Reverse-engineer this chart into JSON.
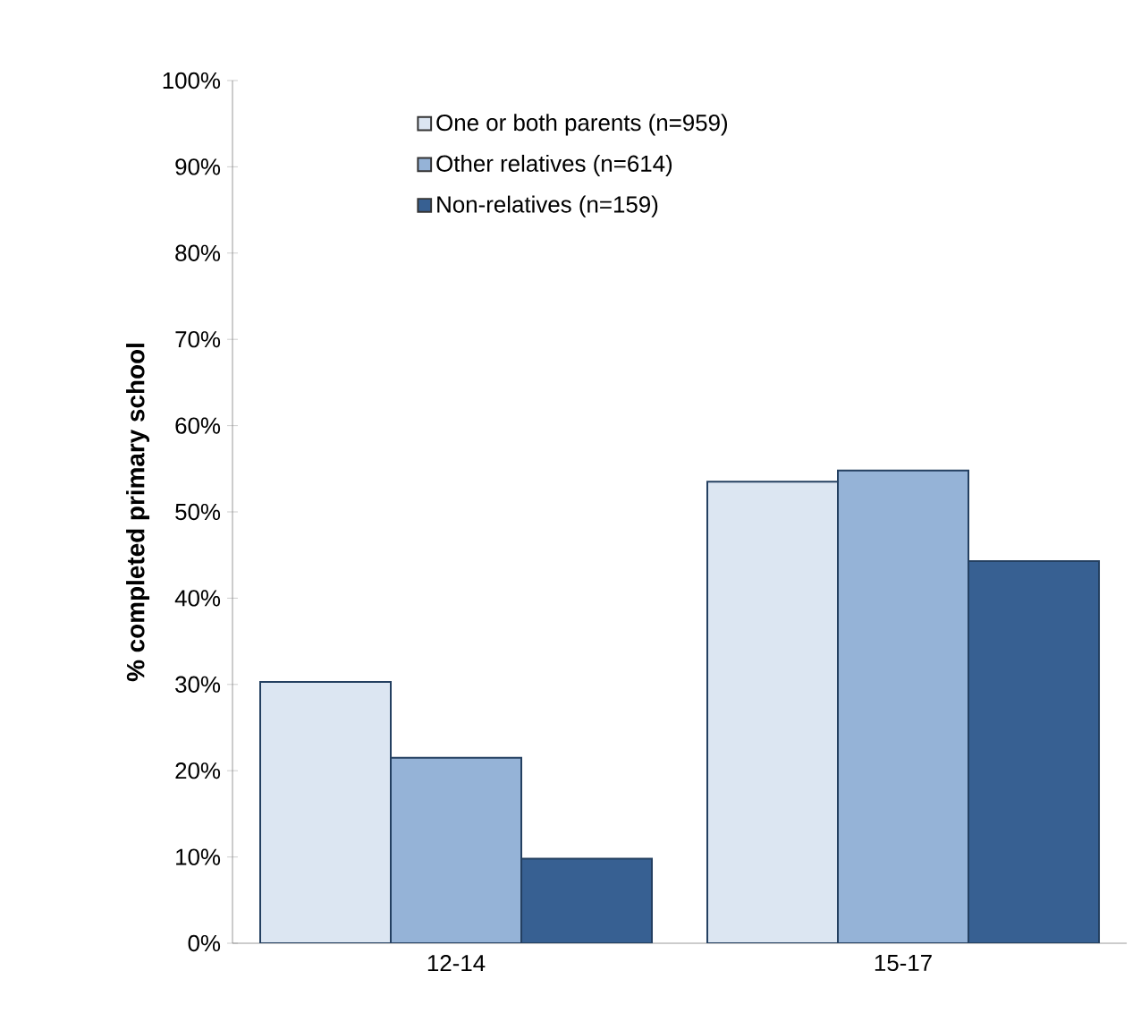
{
  "chart_data": {
    "type": "bar",
    "ylabel": "% completed primary school",
    "categories": [
      "12-14",
      "15-17"
    ],
    "series": [
      {
        "name": "One or both parents (n=959)",
        "color": "#dce6f2",
        "values": [
          30.3,
          53.5
        ]
      },
      {
        "name": "Other relatives (n=614)",
        "color": "#95b3d7",
        "values": [
          21.5,
          54.8
        ]
      },
      {
        "name": "Non-relatives (n=159)",
        "color": "#376092",
        "values": [
          9.8,
          44.3
        ]
      }
    ],
    "ylim": [
      0,
      100
    ],
    "yticks": [
      {
        "value": 0,
        "label": "0%"
      },
      {
        "value": 10,
        "label": "10%"
      },
      {
        "value": 20,
        "label": "20%"
      },
      {
        "value": 30,
        "label": "30%"
      },
      {
        "value": 40,
        "label": "40%"
      },
      {
        "value": 50,
        "label": "50%"
      },
      {
        "value": 60,
        "label": "60%"
      },
      {
        "value": 70,
        "label": "70%"
      },
      {
        "value": 80,
        "label": "80%"
      },
      {
        "value": 90,
        "label": "90%"
      },
      {
        "value": 100,
        "label": "100%"
      }
    ],
    "grid": false,
    "legend": "top"
  }
}
